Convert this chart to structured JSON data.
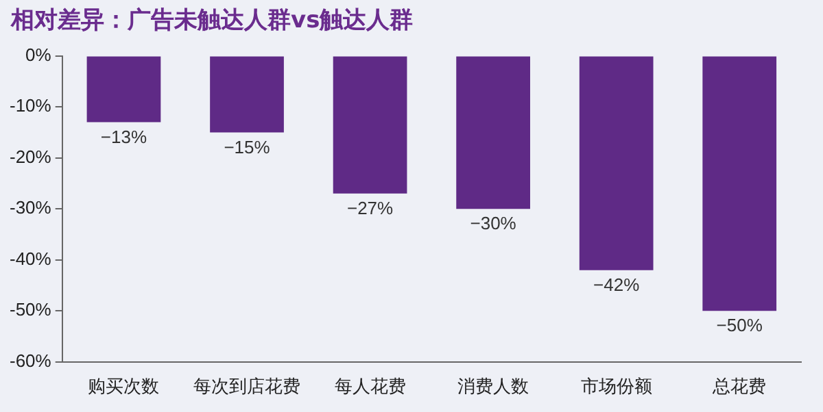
{
  "chart_data": {
    "type": "bar",
    "title": "相对差异：广告未触达人群vs触达人群",
    "categories": [
      "购买次数",
      "每次到店花费",
      "每人花费",
      "消费人数",
      "市场份额",
      "总花费"
    ],
    "values": [
      -13,
      -15,
      -27,
      -30,
      -42,
      -50
    ],
    "value_labels": [
      "−13%",
      "−15%",
      "−27%",
      "−30%",
      "−42%",
      "−50%"
    ],
    "color": "#5f2a86",
    "ylim": [
      -60,
      0
    ],
    "yticks": [
      {
        "value": 0,
        "label": "0%"
      },
      {
        "value": -10,
        "label": "-10%"
      },
      {
        "value": -20,
        "label": "-20%"
      },
      {
        "value": -30,
        "label": "-30%"
      },
      {
        "value": -40,
        "label": "-40%"
      },
      {
        "value": -50,
        "label": "-50%"
      },
      {
        "value": -60,
        "label": "-60%"
      }
    ],
    "grid": false,
    "legend": false
  }
}
